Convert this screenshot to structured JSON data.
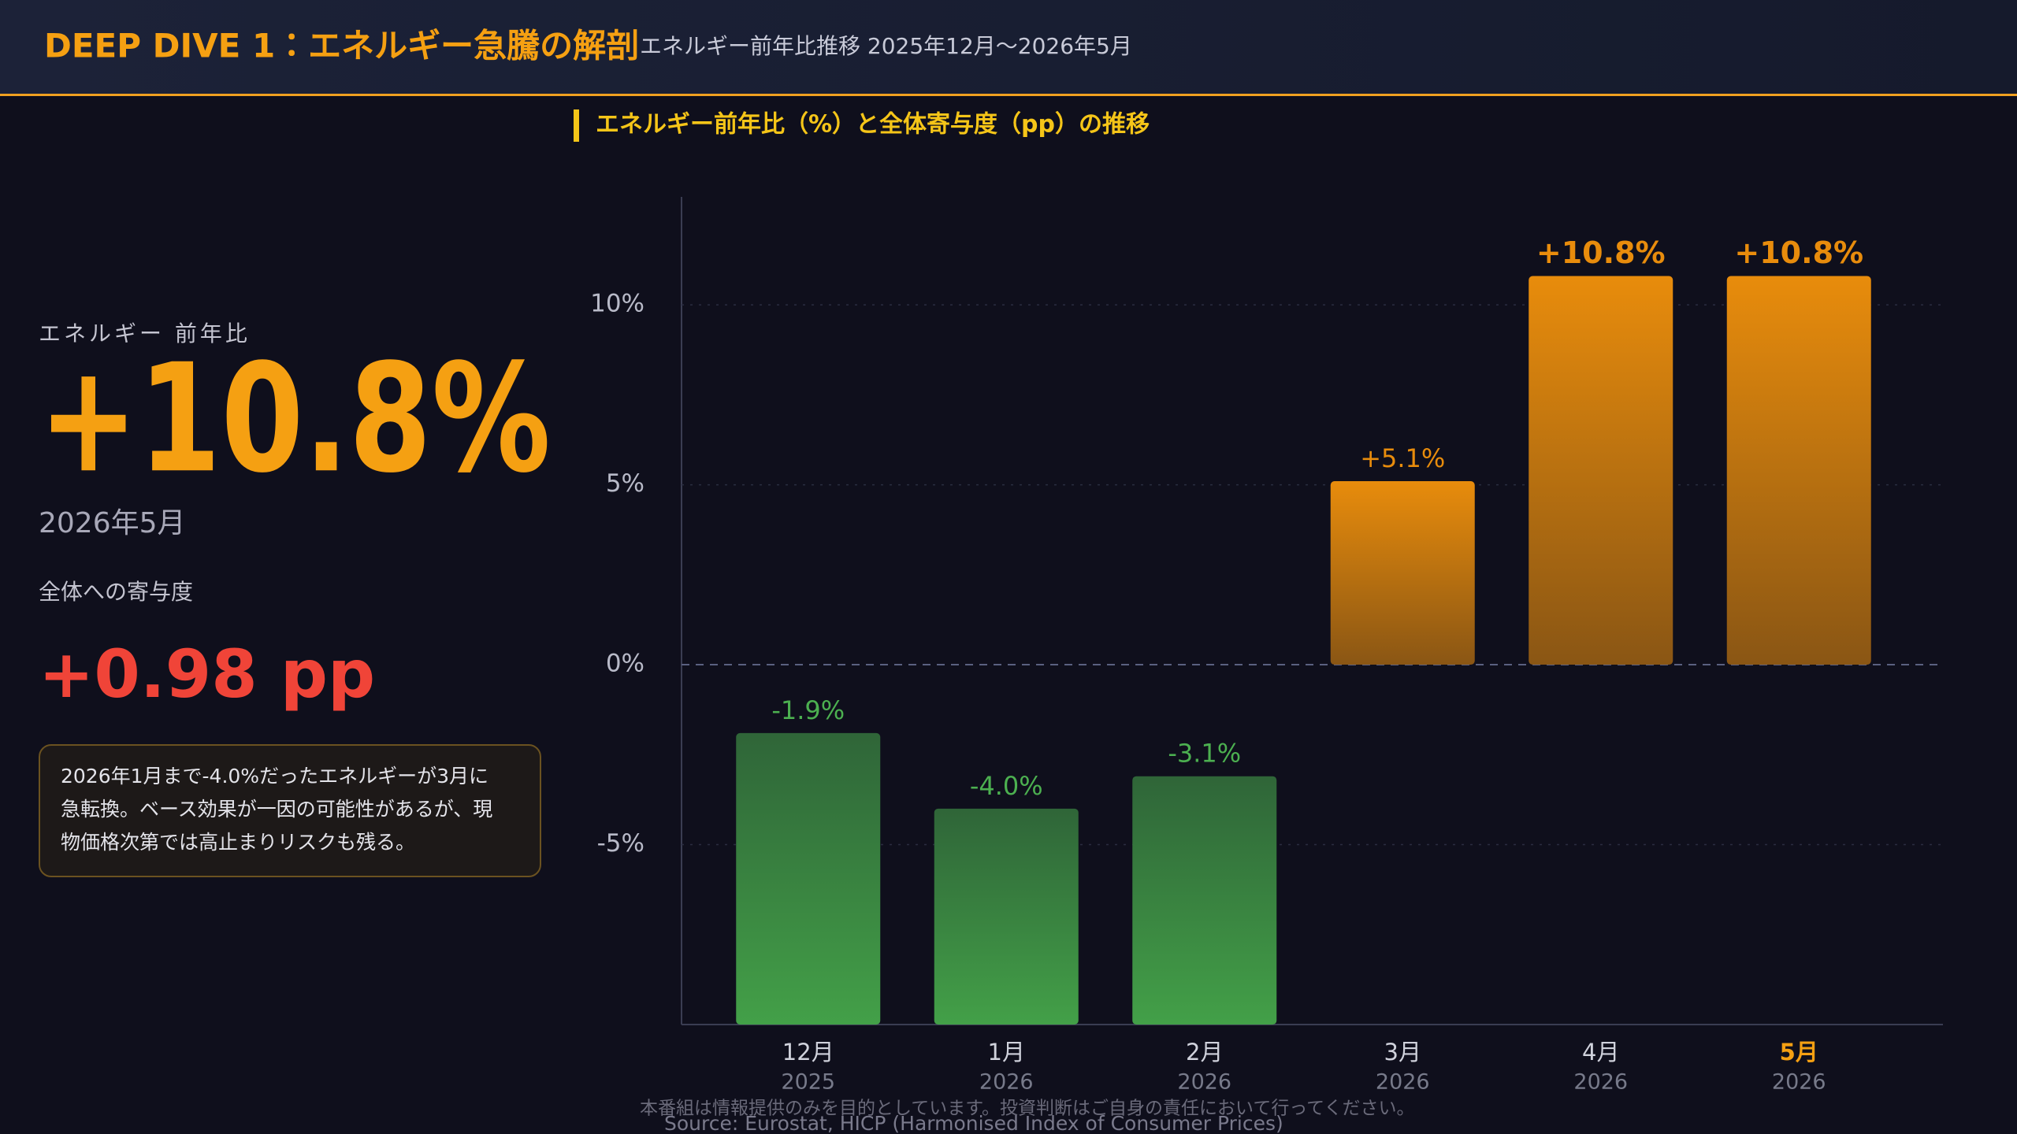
{
  "header": {
    "title": "DEEP DIVE 1：エネルギー急騰の解剖",
    "subtitle": "エネルギー前年比推移 2025年12月〜2026年5月"
  },
  "summary": {
    "label": "エネルギー 前年比",
    "value": "+10.8%",
    "period": "2026年5月",
    "contribution_label": "全体への寄与度",
    "contribution": "+0.98 pp",
    "note": [
      "2026年1月まで-4.0%だったエネルギーが3月に",
      "急転換。ベース効果が一因の可能性があるが、現",
      "物価格次第では高止まりリスクも残る。"
    ]
  },
  "chart_data": {
    "type": "bar",
    "title": "エネルギー前年比（%）と全体寄与度（pp）の推移",
    "categories": [
      "12月",
      "1月",
      "2月",
      "3月",
      "4月",
      "5月"
    ],
    "category_years": [
      "2025",
      "2026",
      "2026",
      "2026",
      "2026",
      "2026"
    ],
    "values": [
      -1.9,
      -4.0,
      -3.1,
      5.1,
      10.8,
      10.8
    ],
    "value_labels": [
      "-1.9%",
      "-4.0%",
      "-3.1%",
      "+5.1%",
      "+10.8%",
      "+10.8%"
    ],
    "negative_color": "#3f9a46",
    "positive_color": "#e88c0c",
    "ylim": [
      -10,
      13
    ],
    "yticks": [
      {
        "value": -5,
        "label": "-5%"
      },
      {
        "value": 0,
        "label": "0%"
      },
      {
        "value": 5,
        "label": "5%"
      },
      {
        "value": 10,
        "label": "10%"
      }
    ],
    "grid": true
  },
  "footer": {
    "disclaimer": "本番組は情報提供のみを目的としています。投資判断はご自身の責任において行ってください。",
    "source": "Source: Eurostat, HICP (Harmonised Index of Consumer Prices)"
  }
}
